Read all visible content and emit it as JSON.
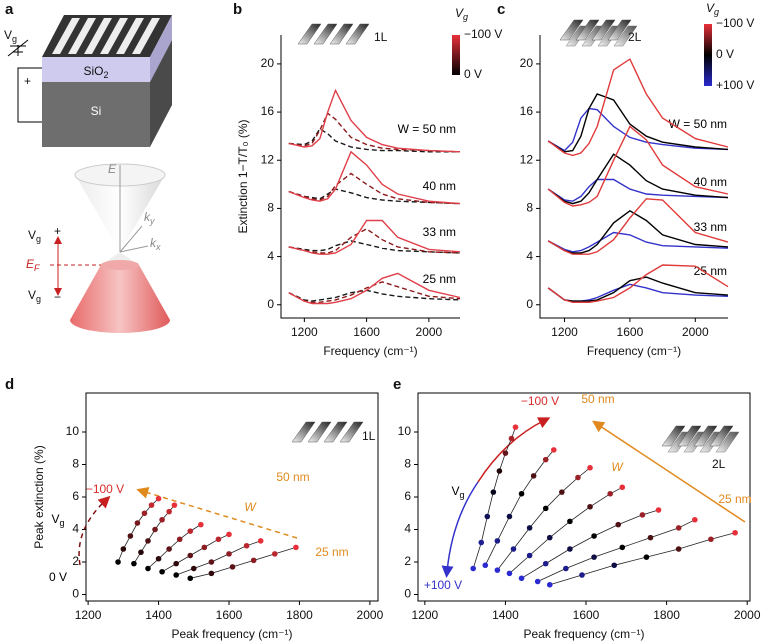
{
  "panel_a": {
    "label": "a",
    "gate": {
      "text": "V",
      "sub": "g"
    },
    "gate_polarity": "+",
    "oxide": {
      "text": "SiO",
      "sub": "2"
    },
    "substrate": "Si",
    "energy": "E",
    "ky": {
      "text": "k",
      "sub": "y"
    },
    "kx": {
      "text": "k",
      "sub": "x"
    },
    "fermi": {
      "text": "E",
      "sub": "F"
    },
    "bias_up": {
      "text": "V",
      "sub": "g",
      "sign": "+"
    },
    "bias_down": {
      "text": "V",
      "sub": "g",
      "sign": "−"
    }
  },
  "chart_data": [
    {
      "type": "line",
      "panel": "b",
      "box": false,
      "xlabel": "Frequency (cm⁻¹)",
      "ylabel": "Extinction 1−T/T₀ (%)",
      "layer": "1L",
      "colorbar": {
        "title": {
          "text": "V",
          "sub": "g"
        },
        "colors": [
          "#e8303a",
          "#000000"
        ],
        "labels": [
          "−100 V",
          "0 V"
        ]
      },
      "annotations": [
        {
          "text": "W = 50 nm",
          "color": "#000000"
        },
        {
          "text": "40 nm",
          "color": "#000000"
        },
        {
          "text": "33 nm",
          "color": "#000000"
        },
        {
          "text": "25 nm",
          "color": "#000000"
        }
      ],
      "x": [
        1100,
        1200,
        1250,
        1300,
        1350,
        1400,
        1500,
        1600,
        1700,
        1800,
        2000,
        2200
      ],
      "series": [
        {
          "color": "#1a1a1a",
          "dash": true,
          "values": [
            13.4,
            13.3,
            13.6,
            14.6,
            14.2,
            13.6,
            13.1,
            12.9,
            12.8,
            12.8,
            12.7,
            12.7
          ]
        },
        {
          "color": "#8b1a1a",
          "dash": true,
          "values": [
            13.4,
            13.2,
            13.4,
            14.5,
            15.9,
            15.4,
            13.9,
            13.3,
            13.0,
            12.9,
            12.8,
            12.7
          ]
        },
        {
          "color": "#e0404a",
          "dash": false,
          "values": [
            13.4,
            13.1,
            13.2,
            13.8,
            16.0,
            17.8,
            15.3,
            13.9,
            13.3,
            13.0,
            12.8,
            12.7
          ]
        },
        {
          "color": "#1a1a1a",
          "dash": true,
          "values": [
            9.4,
            9.0,
            8.9,
            8.8,
            9.2,
            9.6,
            9.3,
            8.9,
            8.7,
            8.6,
            8.5,
            8.4
          ]
        },
        {
          "color": "#8b1a1a",
          "dash": true,
          "values": [
            9.4,
            9.0,
            8.8,
            8.7,
            9.0,
            9.9,
            10.9,
            10.0,
            9.2,
            8.8,
            8.5,
            8.4
          ]
        },
        {
          "color": "#e0404a",
          "dash": false,
          "values": [
            9.4,
            8.9,
            8.7,
            8.6,
            8.8,
            9.6,
            12.7,
            11.6,
            10.0,
            9.2,
            8.6,
            8.4
          ]
        },
        {
          "color": "#1a1a1a",
          "dash": true,
          "values": [
            4.8,
            4.6,
            4.5,
            4.5,
            4.6,
            4.9,
            5.3,
            5.0,
            4.7,
            4.5,
            4.4,
            4.3
          ]
        },
        {
          "color": "#8b1a1a",
          "dash": true,
          "values": [
            4.8,
            4.5,
            4.4,
            4.3,
            4.3,
            4.5,
            5.6,
            6.3,
            5.4,
            4.8,
            4.4,
            4.3
          ]
        },
        {
          "color": "#e0404a",
          "dash": false,
          "values": [
            4.8,
            4.5,
            4.3,
            4.2,
            4.2,
            4.3,
            5.0,
            7.0,
            7.0,
            5.6,
            4.6,
            4.4
          ]
        },
        {
          "color": "#1a1a1a",
          "dash": true,
          "values": [
            1.0,
            0.4,
            0.3,
            0.4,
            0.5,
            0.6,
            1.0,
            1.2,
            0.9,
            0.7,
            0.5,
            0.4
          ]
        },
        {
          "color": "#8b1a1a",
          "dash": true,
          "values": [
            1.0,
            0.3,
            0.2,
            0.2,
            0.3,
            0.4,
            0.8,
            1.4,
            1.9,
            1.5,
            0.7,
            0.5
          ]
        },
        {
          "color": "#e0404a",
          "dash": false,
          "values": [
            1.0,
            0.3,
            0.1,
            0.1,
            0.1,
            0.2,
            0.5,
            1.2,
            2.2,
            2.6,
            1.2,
            0.6
          ]
        }
      ],
      "xlim": [
        1050,
        2200
      ],
      "xticks": [
        1200,
        1600,
        2000
      ],
      "ylim": [
        -1.1,
        22.4
      ],
      "yticks": [
        0,
        4,
        8,
        12,
        16,
        20
      ]
    },
    {
      "type": "line",
      "panel": "c",
      "box": false,
      "xlabel": "Frequency (cm⁻¹)",
      "layer": "2L",
      "colorbar": {
        "title": {
          "text": "V",
          "sub": "g"
        },
        "colors": [
          "#e8303a",
          "#000000",
          "#2a2ad0"
        ],
        "labels": [
          "−100 V",
          "0 V",
          "+100 V"
        ]
      },
      "annotations": [
        {
          "text": "W = 50 nm",
          "color": "#000000"
        },
        {
          "text": "40 nm",
          "color": "#000000"
        },
        {
          "text": "33 nm",
          "color": "#000000"
        },
        {
          "text": "25 nm",
          "color": "#000000"
        }
      ],
      "x": [
        1100,
        1200,
        1250,
        1300,
        1350,
        1400,
        1500,
        1600,
        1700,
        1800,
        2000,
        2200
      ],
      "series": [
        {
          "color": "#3333cc",
          "dash": false,
          "values": [
            13.6,
            12.8,
            13.5,
            15.5,
            16.3,
            16.2,
            14.8,
            13.9,
            13.5,
            13.3,
            13.0,
            12.9
          ]
        },
        {
          "color": "#000000",
          "dash": false,
          "values": [
            13.6,
            12.7,
            12.8,
            14.0,
            16.3,
            17.5,
            17.0,
            15.0,
            14.0,
            13.5,
            13.1,
            12.9
          ]
        },
        {
          "color": "#e03a3a",
          "dash": false,
          "values": [
            13.6,
            12.6,
            12.4,
            12.6,
            13.4,
            14.8,
            19.5,
            20.4,
            17.5,
            15.5,
            13.8,
            13.1
          ]
        },
        {
          "color": "#3333cc",
          "dash": false,
          "values": [
            9.6,
            8.7,
            8.6,
            9.0,
            9.8,
            10.4,
            10.4,
            9.6,
            9.2,
            9.1,
            9.0,
            8.9
          ]
        },
        {
          "color": "#000000",
          "dash": false,
          "values": [
            9.6,
            8.6,
            8.4,
            8.6,
            9.3,
            10.4,
            12.5,
            11.6,
            10.3,
            9.6,
            9.1,
            8.9
          ]
        },
        {
          "color": "#e03a3a",
          "dash": false,
          "values": [
            9.6,
            8.5,
            8.2,
            8.3,
            8.5,
            9.0,
            12.0,
            14.8,
            13.7,
            11.6,
            9.8,
            9.2
          ]
        },
        {
          "color": "#3333cc",
          "dash": false,
          "values": [
            5.3,
            4.6,
            4.4,
            4.5,
            4.8,
            5.2,
            6.0,
            5.8,
            5.2,
            4.9,
            4.8,
            4.7
          ]
        },
        {
          "color": "#000000",
          "dash": false,
          "values": [
            5.3,
            4.5,
            4.3,
            4.3,
            4.5,
            5.0,
            6.8,
            7.8,
            7.0,
            5.8,
            5.0,
            4.8
          ]
        },
        {
          "color": "#e03a3a",
          "dash": false,
          "values": [
            5.3,
            4.5,
            4.2,
            4.2,
            4.2,
            4.4,
            5.4,
            7.2,
            8.8,
            8.7,
            6.0,
            5.2
          ]
        },
        {
          "color": "#3333cc",
          "dash": false,
          "values": [
            1.4,
            0.4,
            0.3,
            0.3,
            0.4,
            0.6,
            1.2,
            1.7,
            1.4,
            1.0,
            0.8,
            0.7
          ]
        },
        {
          "color": "#000000",
          "dash": false,
          "values": [
            1.4,
            0.4,
            0.3,
            0.3,
            0.3,
            0.4,
            1.0,
            2.0,
            2.3,
            1.8,
            1.0,
            0.8
          ]
        },
        {
          "color": "#e03a3a",
          "dash": false,
          "values": [
            1.4,
            0.4,
            0.2,
            0.2,
            0.2,
            0.3,
            0.6,
            1.4,
            2.5,
            3.3,
            3.2,
            1.5
          ]
        }
      ],
      "xlim": [
        1050,
        2200
      ],
      "xticks": [
        1200,
        1600,
        2000
      ],
      "ylim": [
        -1.1,
        22.4
      ],
      "yticks": [
        0,
        4,
        8,
        12,
        16,
        20
      ]
    },
    {
      "type": "scatter",
      "panel": "d",
      "box": true,
      "xlabel": "Peak frequency (cm⁻¹)",
      "ylabel": "Peak extinction (%)",
      "layer": "1L",
      "gradient": [
        "#000000",
        "#e8303a"
      ],
      "annotations": [
        {
          "text": "−100 V",
          "color": "#d92b2b"
        },
        {
          "text": "0 V",
          "color": "#000000"
        },
        {
          "text": "V",
          "sub": "g",
          "color": "#000000"
        },
        {
          "text": "50 nm",
          "color": "#e08a1e"
        },
        {
          "text": "W",
          "color": "#e08a1e",
          "italic": true
        },
        {
          "text": "25 nm",
          "color": "#e08a1e"
        }
      ],
      "series": [
        {
          "x": [
            1285,
            1300,
            1320,
            1340,
            1360,
            1380,
            1400
          ],
          "values": [
            2.0,
            2.8,
            3.6,
            4.4,
            5.0,
            5.5,
            5.9
          ]
        },
        {
          "x": [
            1330,
            1350,
            1370,
            1390,
            1410,
            1430,
            1445
          ],
          "values": [
            1.9,
            2.6,
            3.3,
            4.0,
            4.6,
            5.1,
            5.5
          ]
        },
        {
          "x": [
            1370,
            1400,
            1430,
            1460,
            1490,
            1520
          ],
          "values": [
            1.6,
            2.2,
            2.8,
            3.4,
            3.9,
            4.3
          ]
        },
        {
          "x": [
            1410,
            1450,
            1490,
            1530,
            1570,
            1600
          ],
          "values": [
            1.4,
            1.9,
            2.4,
            2.9,
            3.4,
            3.7
          ]
        },
        {
          "x": [
            1450,
            1500,
            1550,
            1600,
            1650,
            1690
          ],
          "values": [
            1.2,
            1.6,
            2.0,
            2.5,
            3.0,
            3.3
          ]
        },
        {
          "x": [
            1490,
            1550,
            1610,
            1670,
            1730,
            1790
          ],
          "values": [
            1.0,
            1.3,
            1.7,
            2.1,
            2.5,
            2.9
          ]
        }
      ],
      "xlim": [
        1194,
        2023
      ],
      "xticks": [
        1200,
        1400,
        1600,
        1800,
        2000
      ],
      "ylim": [
        -0.4,
        12.4
      ],
      "yticks": [
        0,
        2,
        4,
        6,
        8,
        10
      ]
    },
    {
      "type": "scatter",
      "panel": "e",
      "box": true,
      "xlabel": "Peak frequency (cm⁻¹)",
      "layer": "2L",
      "gradient": [
        "#2a2ad0",
        "#000000",
        "#e8303a"
      ],
      "annotations": [
        {
          "text": "−100 V",
          "color": "#d92b2b"
        },
        {
          "text": "+100 V",
          "color": "#3333cc"
        },
        {
          "text": "V",
          "sub": "g",
          "color": "#000000"
        },
        {
          "text": "50 nm",
          "color": "#e08a1e"
        },
        {
          "text": "W",
          "color": "#e08a1e",
          "italic": true
        },
        {
          "text": "25 nm",
          "color": "#e08a1e"
        }
      ],
      "series": [
        {
          "x": [
            1320,
            1340,
            1355,
            1370,
            1385,
            1400,
            1415,
            1425
          ],
          "values": [
            1.6,
            3.2,
            4.8,
            6.3,
            7.6,
            8.7,
            9.6,
            10.3
          ]
        },
        {
          "x": [
            1350,
            1380,
            1410,
            1440,
            1470,
            1500,
            1520
          ],
          "values": [
            1.8,
            3.3,
            4.8,
            6.2,
            7.3,
            8.3,
            8.9
          ]
        },
        {
          "x": [
            1380,
            1420,
            1460,
            1500,
            1540,
            1580,
            1610
          ],
          "values": [
            1.5,
            2.8,
            4.1,
            5.3,
            6.3,
            7.2,
            7.8
          ]
        },
        {
          "x": [
            1410,
            1460,
            1510,
            1560,
            1610,
            1660,
            1690
          ],
          "values": [
            1.3,
            2.4,
            3.5,
            4.5,
            5.4,
            6.2,
            6.6
          ]
        },
        {
          "x": [
            1440,
            1500,
            1560,
            1620,
            1680,
            1740,
            1780
          ],
          "values": [
            1.0,
            1.9,
            2.8,
            3.6,
            4.3,
            4.9,
            5.2
          ]
        },
        {
          "x": [
            1480,
            1550,
            1620,
            1690,
            1760,
            1830,
            1870
          ],
          "values": [
            0.8,
            1.6,
            2.3,
            2.9,
            3.5,
            4.1,
            4.6
          ]
        },
        {
          "x": [
            1510,
            1590,
            1670,
            1750,
            1830,
            1910,
            1970
          ],
          "values": [
            0.6,
            1.2,
            1.8,
            2.3,
            2.8,
            3.4,
            3.8
          ]
        }
      ],
      "xlim": [
        1183,
        2007
      ],
      "xticks": [
        1200,
        1400,
        1600,
        1800,
        2000
      ],
      "ylim": [
        -0.4,
        12.4
      ],
      "yticks": [
        0,
        2,
        4,
        6,
        8,
        10
      ]
    }
  ]
}
